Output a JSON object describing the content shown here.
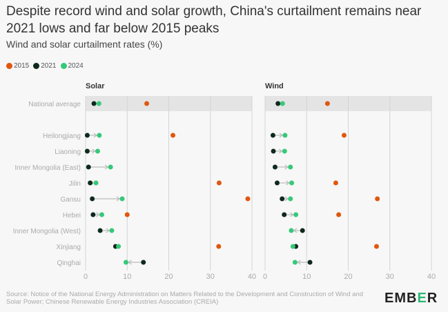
{
  "title": "Despite record wind and solar growth, China's curtailment remains near 2021 lows and far below 2015 peaks",
  "subtitle": "Wind and solar curtailment rates (%)",
  "legend": [
    {
      "label": "2015",
      "color": "#e0570f"
    },
    {
      "label": "2021",
      "color": "#0e2a1c"
    },
    {
      "label": "2024",
      "color": "#35c979"
    }
  ],
  "source": "Source: Notice of the National Energy Administration on Matters Related to the Development and Construction of Wind and Solar Power; Chinese Renewable Energy Industries Association (CREIA)",
  "logo": {
    "text": "EMBER",
    "accent": "#2bb673"
  },
  "chart_data": [
    {
      "type": "scatter",
      "title": "Solar",
      "xlim": [
        0,
        40
      ],
      "xticks": [
        0,
        10,
        20,
        30,
        40
      ],
      "grid": true,
      "categories": [
        "National average",
        "Heilongjiang",
        "Liaoning",
        "Inner Mongolia (East)",
        "Jilin",
        "Gansu",
        "Hebei",
        "Inner Mongolia (West)",
        "Xinjiang",
        "Qinghai"
      ],
      "series": [
        {
          "name": "2015",
          "values": [
            14.7,
            21,
            null,
            null,
            32.1,
            39,
            10,
            null,
            32,
            null
          ]
        },
        {
          "name": "2021",
          "values": [
            2.0,
            0.4,
            0.4,
            0.7,
            1.1,
            1.6,
            1.8,
            3.5,
            7.2,
            13.9
          ]
        },
        {
          "name": "2024",
          "values": [
            3.2,
            3.3,
            2.9,
            6.0,
            2.5,
            8.8,
            3.9,
            6.3,
            7.9,
            9.7
          ]
        }
      ]
    },
    {
      "type": "scatter",
      "title": "Wind",
      "xlim": [
        0,
        40
      ],
      "xticks": [
        0,
        10,
        20,
        30,
        40
      ],
      "grid": true,
      "categories": [
        "National average",
        "Heilongjiang",
        "Liaoning",
        "Inner Mongolia (East)",
        "Jilin",
        "Gansu",
        "Hebei",
        "Inner Mongolia (West)",
        "Xinjiang",
        "Qinghai"
      ],
      "series": [
        {
          "name": "2015",
          "values": [
            15,
            19,
            null,
            null,
            17,
            27,
            17.7,
            null,
            26.8,
            null
          ]
        },
        {
          "name": "2021",
          "values": [
            3.1,
            1.9,
            2.0,
            2.4,
            2.9,
            4.1,
            4.6,
            9.0,
            7.4,
            10.8
          ]
        },
        {
          "name": "2024",
          "values": [
            4.2,
            4.8,
            4.7,
            6.1,
            6.4,
            6.1,
            7.4,
            6.3,
            6.7,
            7.2
          ]
        }
      ]
    }
  ]
}
